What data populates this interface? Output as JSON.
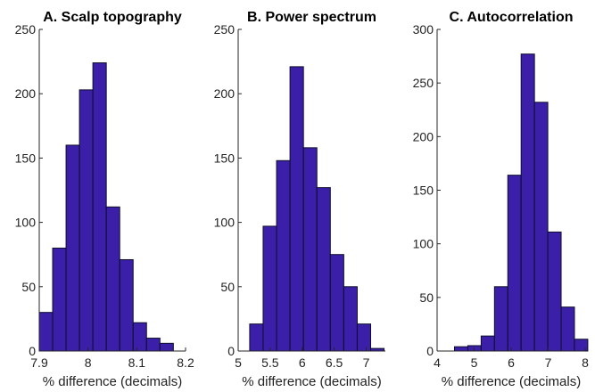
{
  "colors": {
    "bar_fill": "#3b1fa8",
    "bar_edge": "#0d0d2a",
    "axis": "#262626"
  },
  "chart_data": [
    {
      "type": "bar",
      "title": "A. Scalp topography",
      "xlabel": "% difference (decimals)",
      "ylabel": "",
      "xlim": [
        7.9,
        8.2
      ],
      "ylim": [
        0,
        250
      ],
      "xticks": [
        7.9,
        8,
        8.1,
        8.2
      ],
      "xtick_labels": [
        "7.9",
        "8",
        "8.1",
        "8.2"
      ],
      "yticks": [
        0,
        50,
        100,
        150,
        200,
        250
      ],
      "ytick_labels": [
        "0",
        "50",
        "100",
        "150",
        "200",
        "250"
      ],
      "bin_edges": [
        7.9,
        7.9275,
        7.955,
        7.9825,
        8.01,
        8.0375,
        8.065,
        8.0925,
        8.12,
        8.1475,
        8.175
      ],
      "values": [
        30,
        80,
        160,
        203,
        224,
        112,
        71,
        22,
        10,
        6
      ]
    },
    {
      "type": "bar",
      "title": "B. Power spectrum",
      "xlabel": "% difference (decimals)",
      "ylabel": "",
      "xlim": [
        5,
        7.3
      ],
      "ylim": [
        0,
        250
      ],
      "xticks": [
        5,
        5.5,
        6,
        6.5,
        7
      ],
      "xtick_labels": [
        "5",
        "5.5",
        "6",
        "6.5",
        "7"
      ],
      "yticks": [
        0,
        50,
        100,
        150,
        200,
        250
      ],
      "ytick_labels": [
        "0",
        "50",
        "100",
        "150",
        "200",
        "250"
      ],
      "bin_edges": [
        5.18,
        5.39,
        5.6,
        5.81,
        6.02,
        6.23,
        6.44,
        6.65,
        6.86,
        7.07,
        7.28
      ],
      "values": [
        21,
        97,
        148,
        221,
        158,
        127,
        75,
        50,
        21,
        2
      ]
    },
    {
      "type": "bar",
      "title": "C. Autocorrelation",
      "xlabel": "% difference (decimals)",
      "ylabel": "",
      "xlim": [
        4,
        8
      ],
      "ylim": [
        0,
        300
      ],
      "xticks": [
        4,
        5,
        6,
        7,
        8
      ],
      "xtick_labels": [
        "4",
        "5",
        "6",
        "7",
        "8"
      ],
      "yticks": [
        0,
        50,
        100,
        150,
        200,
        250,
        300
      ],
      "ytick_labels": [
        "0",
        "50",
        "100",
        "150",
        "200",
        "250",
        "300"
      ],
      "bin_edges": [
        4.47,
        4.83,
        5.19,
        5.55,
        5.91,
        6.27,
        6.63,
        6.99,
        7.35,
        7.71,
        8.07
      ],
      "values": [
        4,
        5,
        14,
        60,
        164,
        277,
        232,
        111,
        41,
        11
      ]
    }
  ]
}
